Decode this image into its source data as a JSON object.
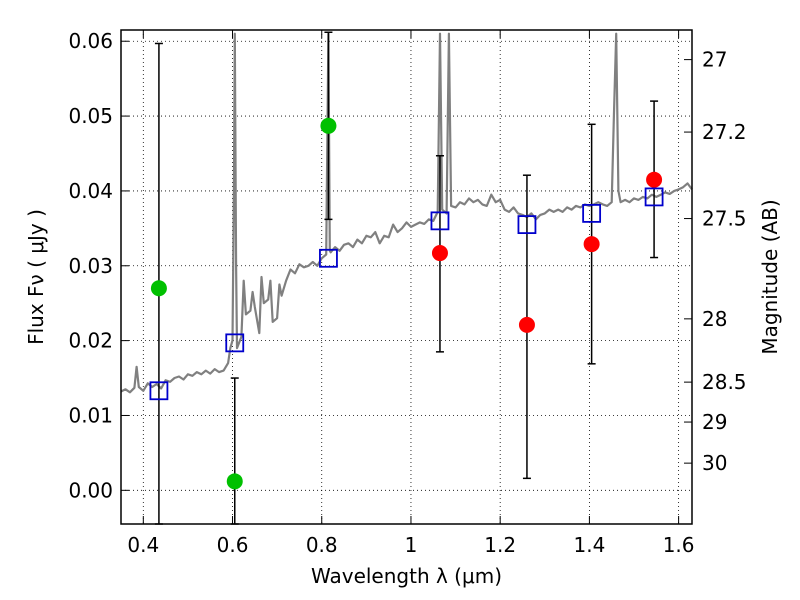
{
  "chart_data": {
    "type": "scatter",
    "xlabel": "Wavelength  λ (μm)",
    "ylabel": "Flux  Fν  ( μJy )",
    "y2label": "Magnitude (AB)",
    "xlim": [
      0.35,
      1.63
    ],
    "ylim": [
      -0.0045,
      0.0615
    ],
    "grid": true,
    "x_ticks": [
      {
        "v": 0.4,
        "label": "0.4"
      },
      {
        "v": 0.6,
        "label": "0.6"
      },
      {
        "v": 0.8,
        "label": "0.8"
      },
      {
        "v": 1.0,
        "label": "1"
      },
      {
        "v": 1.2,
        "label": "1.2"
      },
      {
        "v": 1.4,
        "label": "1.4"
      },
      {
        "v": 1.6,
        "label": "1.6"
      }
    ],
    "y_ticks": [
      {
        "v": 0.0,
        "label": "0.00"
      },
      {
        "v": 0.01,
        "label": "0.01"
      },
      {
        "v": 0.02,
        "label": "0.02"
      },
      {
        "v": 0.03,
        "label": "0.03"
      },
      {
        "v": 0.04,
        "label": "0.04"
      },
      {
        "v": 0.05,
        "label": "0.05"
      },
      {
        "v": 0.06,
        "label": "0.06"
      }
    ],
    "mag_ticks": [
      {
        "mag": 27,
        "label": "27"
      },
      {
        "mag": 27.2,
        "label": "27.2"
      },
      {
        "mag": 27.5,
        "label": "27.5"
      },
      {
        "mag": 28,
        "label": "28"
      },
      {
        "mag": 28.5,
        "label": "28.5"
      },
      {
        "mag": 29,
        "label": "29"
      },
      {
        "mag": 30,
        "label": "30"
      }
    ],
    "model_spectrum": {
      "color": "#808080",
      "points": [
        [
          0.35,
          0.0132
        ],
        [
          0.36,
          0.0135
        ],
        [
          0.37,
          0.0131
        ],
        [
          0.38,
          0.0137
        ],
        [
          0.385,
          0.0165
        ],
        [
          0.39,
          0.0138
        ],
        [
          0.4,
          0.0133
        ],
        [
          0.41,
          0.0143
        ],
        [
          0.42,
          0.0138
        ],
        [
          0.43,
          0.0142
        ],
        [
          0.44,
          0.0136
        ],
        [
          0.45,
          0.0147
        ],
        [
          0.46,
          0.0145
        ],
        [
          0.47,
          0.015
        ],
        [
          0.48,
          0.0152
        ],
        [
          0.49,
          0.0148
        ],
        [
          0.5,
          0.0155
        ],
        [
          0.51,
          0.0153
        ],
        [
          0.52,
          0.0158
        ],
        [
          0.53,
          0.0155
        ],
        [
          0.54,
          0.016
        ],
        [
          0.55,
          0.0156
        ],
        [
          0.56,
          0.0162
        ],
        [
          0.57,
          0.0158
        ],
        [
          0.58,
          0.016
        ],
        [
          0.59,
          0.017
        ],
        [
          0.595,
          0.019
        ],
        [
          0.6,
          0.02
        ],
        [
          0.603,
          0.04
        ],
        [
          0.605,
          0.061
        ],
        [
          0.608,
          0.03
        ],
        [
          0.61,
          0.019
        ],
        [
          0.62,
          0.0205
        ],
        [
          0.625,
          0.028
        ],
        [
          0.63,
          0.0235
        ],
        [
          0.64,
          0.024
        ],
        [
          0.645,
          0.0265
        ],
        [
          0.65,
          0.0245
        ],
        [
          0.66,
          0.021
        ],
        [
          0.665,
          0.0285
        ],
        [
          0.67,
          0.025
        ],
        [
          0.68,
          0.0255
        ],
        [
          0.685,
          0.028
        ],
        [
          0.69,
          0.0225
        ],
        [
          0.7,
          0.023
        ],
        [
          0.705,
          0.0275
        ],
        [
          0.71,
          0.026
        ],
        [
          0.72,
          0.028
        ],
        [
          0.73,
          0.0295
        ],
        [
          0.74,
          0.029
        ],
        [
          0.75,
          0.0302
        ],
        [
          0.76,
          0.0298
        ],
        [
          0.77,
          0.03
        ],
        [
          0.78,
          0.0305
        ],
        [
          0.79,
          0.03
        ],
        [
          0.8,
          0.031
        ],
        [
          0.81,
          0.0315
        ],
        [
          0.815,
          0.061
        ],
        [
          0.818,
          0.032
        ],
        [
          0.82,
          0.0318
        ],
        [
          0.83,
          0.0325
        ],
        [
          0.84,
          0.032
        ],
        [
          0.85,
          0.0328
        ],
        [
          0.86,
          0.033
        ],
        [
          0.87,
          0.0325
        ],
        [
          0.88,
          0.0335
        ],
        [
          0.89,
          0.033
        ],
        [
          0.9,
          0.034
        ],
        [
          0.91,
          0.0338
        ],
        [
          0.92,
          0.0345
        ],
        [
          0.93,
          0.033
        ],
        [
          0.94,
          0.034
        ],
        [
          0.95,
          0.0338
        ],
        [
          0.96,
          0.0355
        ],
        [
          0.97,
          0.0345
        ],
        [
          0.98,
          0.035
        ],
        [
          0.99,
          0.0358
        ],
        [
          1.0,
          0.0352
        ],
        [
          1.01,
          0.0355
        ],
        [
          1.02,
          0.0358
        ],
        [
          1.03,
          0.0356
        ],
        [
          1.04,
          0.0362
        ],
        [
          1.05,
          0.036
        ],
        [
          1.06,
          0.0372
        ],
        [
          1.065,
          0.061
        ],
        [
          1.07,
          0.0375
        ],
        [
          1.08,
          0.037
        ],
        [
          1.085,
          0.061
        ],
        [
          1.09,
          0.038
        ],
        [
          1.1,
          0.0378
        ],
        [
          1.11,
          0.0385
        ],
        [
          1.12,
          0.0382
        ],
        [
          1.13,
          0.039
        ],
        [
          1.14,
          0.0385
        ],
        [
          1.15,
          0.0388
        ],
        [
          1.16,
          0.0382
        ],
        [
          1.17,
          0.038
        ],
        [
          1.18,
          0.0395
        ],
        [
          1.19,
          0.0385
        ],
        [
          1.2,
          0.0388
        ],
        [
          1.21,
          0.0375
        ],
        [
          1.22,
          0.0372
        ],
        [
          1.23,
          0.0378
        ],
        [
          1.24,
          0.037
        ],
        [
          1.25,
          0.0368
        ],
        [
          1.26,
          0.0365
        ],
        [
          1.27,
          0.037
        ],
        [
          1.28,
          0.0362
        ],
        [
          1.29,
          0.0368
        ],
        [
          1.3,
          0.037
        ],
        [
          1.31,
          0.0375
        ],
        [
          1.32,
          0.0372
        ],
        [
          1.33,
          0.0375
        ],
        [
          1.34,
          0.0372
        ],
        [
          1.35,
          0.0378
        ],
        [
          1.36,
          0.0375
        ],
        [
          1.37,
          0.038
        ],
        [
          1.38,
          0.0378
        ],
        [
          1.39,
          0.0382
        ],
        [
          1.4,
          0.038
        ],
        [
          1.41,
          0.0382
        ],
        [
          1.42,
          0.0385
        ],
        [
          1.43,
          0.0382
        ],
        [
          1.44,
          0.038
        ],
        [
          1.45,
          0.0385
        ],
        [
          1.455,
          0.05
        ],
        [
          1.46,
          0.061
        ],
        [
          1.465,
          0.04
        ],
        [
          1.47,
          0.0385
        ],
        [
          1.48,
          0.0388
        ],
        [
          1.49,
          0.0385
        ],
        [
          1.5,
          0.039
        ],
        [
          1.51,
          0.0388
        ],
        [
          1.52,
          0.0392
        ],
        [
          1.53,
          0.039
        ],
        [
          1.54,
          0.0395
        ],
        [
          1.55,
          0.0392
        ],
        [
          1.56,
          0.0395
        ],
        [
          1.57,
          0.0398
        ],
        [
          1.58,
          0.0396
        ],
        [
          1.59,
          0.04
        ],
        [
          1.6,
          0.0402
        ],
        [
          1.61,
          0.0405
        ],
        [
          1.62,
          0.041
        ],
        [
          1.63,
          0.0402
        ]
      ]
    },
    "series": [
      {
        "marker": "circle",
        "color": "#00c000",
        "points": [
          {
            "x": 0.435,
            "y": 0.027,
            "lo": -0.0045,
            "hi": 0.0597
          },
          {
            "x": 0.605,
            "y": 0.0012,
            "lo": -0.0045,
            "hi": 0.015
          },
          {
            "x": 0.815,
            "y": 0.0487,
            "lo": 0.0362,
            "hi": 0.0612
          }
        ]
      },
      {
        "marker": "circle",
        "color": "#ff0000",
        "points": [
          {
            "x": 1.065,
            "y": 0.0317,
            "lo": 0.0185,
            "hi": 0.0447
          },
          {
            "x": 1.26,
            "y": 0.0221,
            "lo": 0.0016,
            "hi": 0.0421
          },
          {
            "x": 1.405,
            "y": 0.0329,
            "lo": 0.0169,
            "hi": 0.0489
          },
          {
            "x": 1.545,
            "y": 0.0415,
            "lo": 0.0311,
            "hi": 0.052
          }
        ]
      },
      {
        "marker": "square",
        "color": "#0000cc",
        "points": [
          {
            "x": 0.435,
            "y": 0.0133
          },
          {
            "x": 0.605,
            "y": 0.0197
          },
          {
            "x": 0.815,
            "y": 0.031
          },
          {
            "x": 1.065,
            "y": 0.036
          },
          {
            "x": 1.26,
            "y": 0.0355
          },
          {
            "x": 1.405,
            "y": 0.037
          },
          {
            "x": 1.545,
            "y": 0.0392
          }
        ]
      }
    ]
  }
}
